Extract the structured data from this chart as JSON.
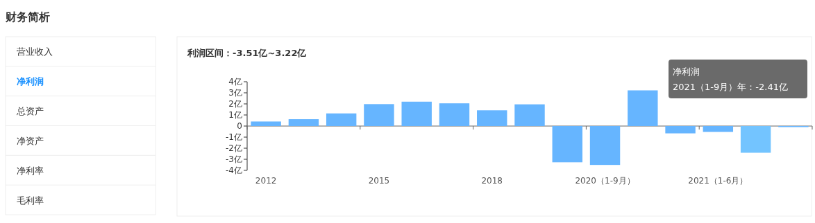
{
  "chart_data": [
    {
      "type": "other",
      "title": "财务简析",
      "annotations": [
        "营业收入",
        "净利润",
        "总资产",
        "净资产",
        "净利率",
        "毛利率"
      ],
      "colors": [
        "#333333",
        "#1890ff",
        "#333333",
        "#333333",
        "#333333",
        "#333333"
      ]
    },
    {
      "type": "bar",
      "title": "利润区间：-3.51亿~3.22亿",
      "categories": [
        "2012",
        null,
        null,
        "2015",
        null,
        null,
        "2018",
        null,
        null,
        "2020（1-9月）",
        null,
        null,
        "2021（1-6月）",
        null,
        null
      ],
      "values": [
        0.41,
        0.62,
        1.14,
        1.98,
        2.2,
        2.05,
        1.42,
        1.96,
        -3.27,
        -3.51,
        3.22,
        -0.66,
        -0.53,
        -2.41,
        -0.02
      ],
      "colors": [
        "#66b5ff",
        "#66b5ff",
        "#66b5ff",
        "#66b5ff",
        "#66b5ff",
        "#66b5ff",
        "#66b5ff",
        "#66b5ff",
        "#66b5ff",
        "#66b5ff",
        "#66b5ff",
        "#66b5ff",
        "#66b5ff",
        "#73c4ff",
        "#66b5ff"
      ],
      "ylim": [
        -4,
        4
      ],
      "yticks": [
        {
          "value": -4,
          "label": "-4亿"
        },
        {
          "value": -3,
          "label": "-3亿"
        },
        {
          "value": -2,
          "label": "-2亿"
        },
        {
          "value": -1,
          "label": "-1亿"
        },
        0,
        {
          "value": 1,
          "label": "1亿"
        },
        {
          "value": 2,
          "label": "2亿"
        },
        {
          "value": 3,
          "label": "3亿"
        },
        {
          "value": 4,
          "label": "4亿"
        }
      ],
      "annotations": [
        "净利润",
        "2021（1-9月）年：-2.41亿"
      ]
    }
  ]
}
